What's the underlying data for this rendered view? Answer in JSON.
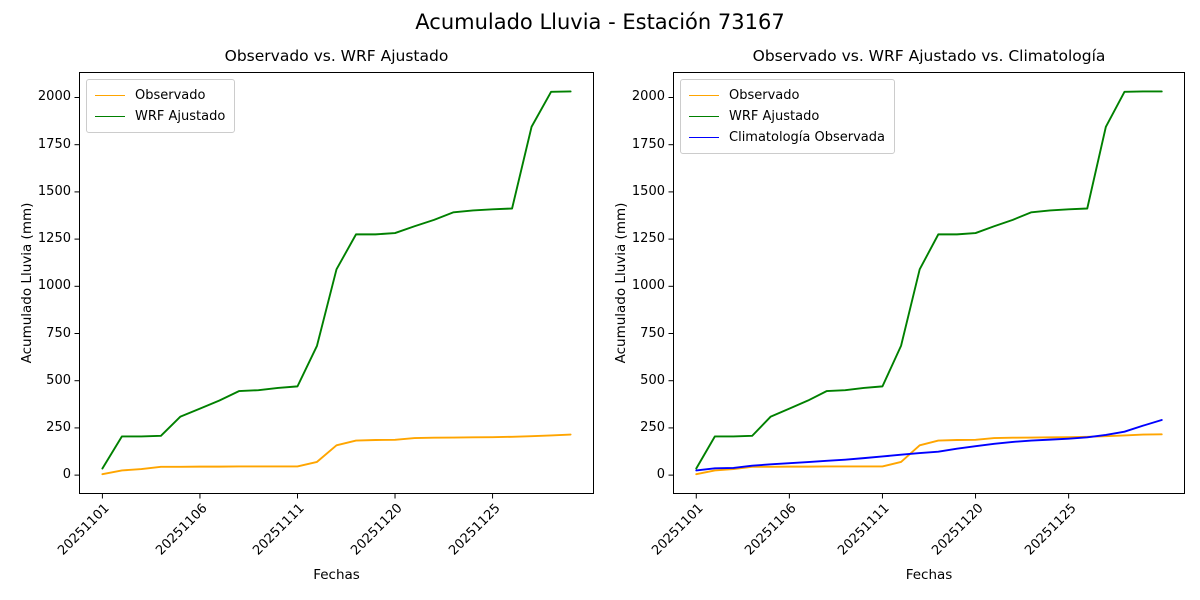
{
  "figure": {
    "title": "Acumulado Lluvia - Estación 73167"
  },
  "colors": {
    "observado": "#FFA500",
    "wrf_ajustado": "#008000",
    "climatologia": "#0000FF",
    "axis": "#000000",
    "legend_border": "#cccccc"
  },
  "chart_data": [
    {
      "type": "line",
      "title": "Observado vs. WRF Ajustado",
      "xlabel": "Fechas",
      "ylabel": "Acumulado Lluvia (mm)",
      "x": [
        "20251101",
        "20251102",
        "20251103",
        "20251104",
        "20251105",
        "20251106",
        "20251107",
        "20251108",
        "20251109",
        "20251110",
        "20251111",
        "20251116",
        "20251117",
        "20251118",
        "20251119",
        "20251120",
        "20251121",
        "20251122",
        "20251123",
        "20251124",
        "20251125",
        "20251126",
        "20251127",
        "20251128",
        "20251129"
      ],
      "xtick_indices": [
        0,
        5,
        10,
        15,
        20
      ],
      "xtick_labels": [
        "20251101",
        "20251106",
        "20251111",
        "20251120",
        "20251125"
      ],
      "yticks": [
        0,
        250,
        500,
        750,
        1000,
        1250,
        1500,
        1750,
        2000
      ],
      "ylim": [
        -100,
        2135
      ],
      "grid": false,
      "legend_position": "upper-left",
      "series": [
        {
          "name": "Observado",
          "color": "#FFA500",
          "values": [
            5,
            25,
            32,
            44,
            44,
            45,
            45,
            46,
            46,
            46,
            46,
            70,
            158,
            183,
            186,
            187,
            196,
            198,
            199,
            200,
            201,
            203,
            206,
            210,
            215
          ]
        },
        {
          "name": "WRF Ajustado",
          "color": "#008000",
          "values": [
            35,
            205,
            205,
            208,
            310,
            352,
            395,
            445,
            450,
            462,
            470,
            685,
            1090,
            1275,
            1275,
            1282,
            1318,
            1352,
            1392,
            1402,
            1408,
            1412,
            1845,
            2030,
            2032
          ]
        }
      ]
    },
    {
      "type": "line",
      "title": "Observado vs. WRF Ajustado vs. Climatología",
      "xlabel": "Fechas",
      "ylabel": "Acumulado Lluvia (mm)",
      "x": [
        "20251101",
        "20251102",
        "20251103",
        "20251104",
        "20251105",
        "20251106",
        "20251107",
        "20251108",
        "20251109",
        "20251110",
        "20251111",
        "20251116",
        "20251117",
        "20251118",
        "20251119",
        "20251120",
        "20251121",
        "20251122",
        "20251123",
        "20251124",
        "20251125",
        "20251126",
        "20251127",
        "20251128",
        "20251129",
        "20251130"
      ],
      "xtick_indices": [
        0,
        5,
        10,
        15,
        20
      ],
      "xtick_labels": [
        "20251101",
        "20251106",
        "20251111",
        "20251120",
        "20251125"
      ],
      "yticks": [
        0,
        250,
        500,
        750,
        1000,
        1250,
        1500,
        1750,
        2000
      ],
      "ylim": [
        -100,
        2135
      ],
      "grid": false,
      "legend_position": "upper-left",
      "series": [
        {
          "name": "Observado",
          "color": "#FFA500",
          "values": [
            5,
            25,
            32,
            44,
            44,
            45,
            45,
            46,
            46,
            46,
            46,
            70,
            158,
            183,
            186,
            187,
            196,
            198,
            199,
            200,
            201,
            203,
            206,
            210,
            215,
            216
          ]
        },
        {
          "name": "WRF Ajustado",
          "color": "#008000",
          "values": [
            35,
            205,
            205,
            208,
            310,
            352,
            395,
            445,
            450,
            462,
            470,
            685,
            1090,
            1275,
            1275,
            1282,
            1318,
            1352,
            1392,
            1402,
            1408,
            1412,
            1845,
            2030,
            2032,
            2032
          ]
        },
        {
          "name": "Climatología Observada",
          "color": "#0000FF",
          "values": [
            25,
            36,
            38,
            50,
            57,
            63,
            69,
            76,
            82,
            90,
            99,
            108,
            117,
            124,
            140,
            153,
            166,
            176,
            183,
            188,
            193,
            200,
            213,
            230,
            262,
            292
          ]
        }
      ]
    }
  ]
}
